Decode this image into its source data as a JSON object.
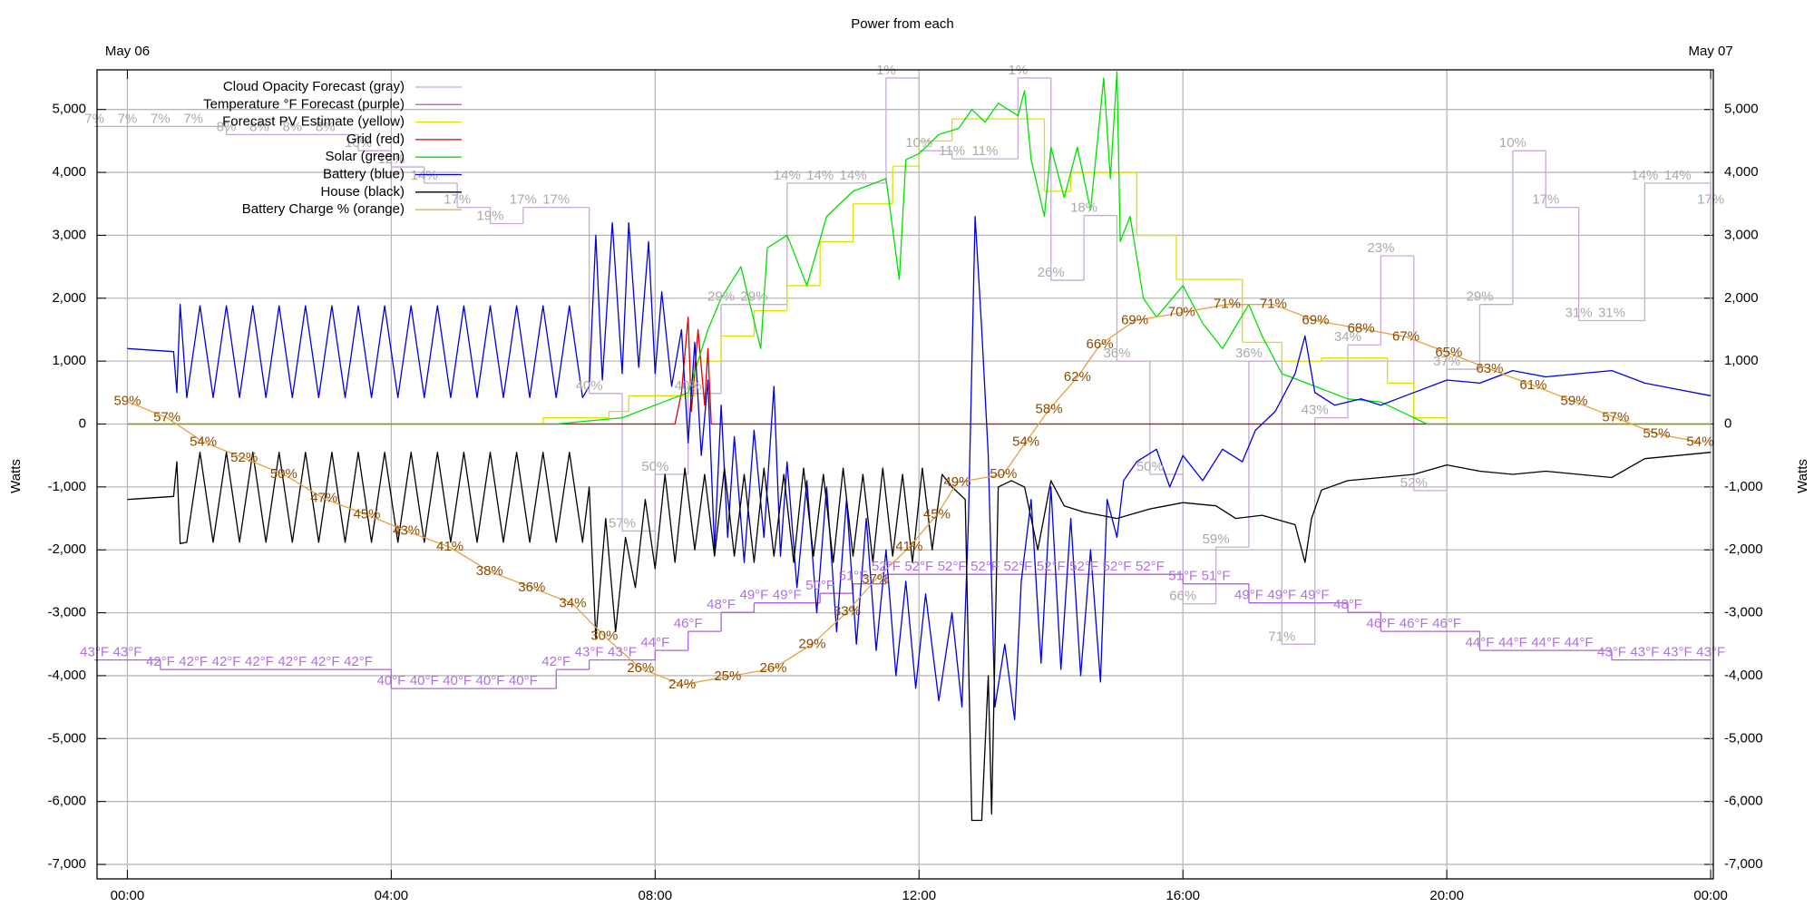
{
  "chart_data": {
    "type": "line",
    "title": "Power from each",
    "ylabel": "Watts",
    "xlim": [
      -0.46,
      24.04
    ],
    "xticks": [
      {
        "value": 0,
        "label": "00:00"
      },
      {
        "value": 4,
        "label": "04:00"
      },
      {
        "value": 8,
        "label": "08:00"
      },
      {
        "value": 12,
        "label": "12:00"
      },
      {
        "value": 16,
        "label": "16:00"
      },
      {
        "value": 20,
        "label": "20:00"
      },
      {
        "value": 24,
        "label": "00:00"
      }
    ],
    "x2ticks": [
      {
        "value": 0,
        "label": "May 06"
      },
      {
        "value": 24,
        "label": "May 07"
      }
    ],
    "ylim": [
      -7230,
      5630
    ],
    "yticks": [
      {
        "value": -7000,
        "label": "-7,000"
      },
      {
        "value": -6000,
        "label": "-6,000"
      },
      {
        "value": -5000,
        "label": "-5,000"
      },
      {
        "value": -4000,
        "label": "-4,000"
      },
      {
        "value": -3000,
        "label": "-3,000"
      },
      {
        "value": -2000,
        "label": "-2,000"
      },
      {
        "value": -1000,
        "label": "-1,000"
      },
      0,
      {
        "value": 1000,
        "label": "1,000"
      },
      {
        "value": 2000,
        "label": "2,000"
      },
      {
        "value": 3000,
        "label": "3,000"
      },
      {
        "value": 4000,
        "label": "4,000"
      },
      {
        "value": 5000,
        "label": "5,000"
      }
    ],
    "y2lim": [
      0,
      100
    ],
    "y3lim": [
      20,
      105
    ],
    "y4lim": [
      100,
      0
    ],
    "grid": true,
    "legend": "top-left",
    "series": [
      {
        "name": "Cloud Opacity Forecast (gray)",
        "color": "#c8a8d8",
        "label_color": "#aaaaaa",
        "axis": "y4",
        "step": true,
        "x": [
          -0.5,
          0,
          0.5,
          1,
          1.5,
          2,
          2.5,
          3,
          3.5,
          4,
          4.5,
          5,
          5.5,
          6,
          6.5,
          7,
          7.5,
          8,
          8.5,
          9,
          9.5,
          10,
          10.5,
          11,
          11.5,
          12,
          12.5,
          13,
          13.5,
          14,
          14.5,
          15,
          15.5,
          16,
          16.5,
          17,
          17.5,
          18,
          18.5,
          19,
          19.5,
          20,
          20.5,
          21,
          21.5,
          22,
          22.5,
          23,
          23.5,
          24
        ],
        "values": [
          7,
          7,
          7,
          7,
          8,
          8,
          8,
          8,
          10,
          12,
          14,
          17,
          19,
          17,
          17,
          40,
          57,
          50,
          40,
          29,
          29,
          14,
          14,
          14,
          1,
          10,
          11,
          11,
          1,
          26,
          18,
          36,
          50,
          66,
          59,
          36,
          71,
          43,
          34,
          23,
          52,
          37,
          29,
          10,
          17,
          31,
          31,
          14,
          14,
          17
        ],
        "value_labels": [
          "7%",
          "7%",
          "7%",
          "7%",
          "8%",
          "8%",
          "8%",
          "8%",
          "10%",
          "12%",
          "14%",
          "17%",
          "19%",
          "17%",
          "17%",
          "40%",
          "57%",
          "50%",
          "40%",
          "29%",
          "29%",
          "14%",
          "14%",
          "14%",
          "1%",
          "10%",
          "11%",
          "11%",
          "1%",
          "26%",
          "18%",
          "36%",
          "50%",
          "66%",
          "59%",
          "36%",
          "71%",
          "43%",
          "34%",
          "23%",
          "52%",
          "37%",
          "29%",
          "10%",
          "17%",
          "31%",
          "31%",
          "14%",
          "14%",
          "17%"
        ]
      },
      {
        "name": "Temperature °F Forecast (purple)",
        "color": "#b060e0",
        "label_color": "#b070e0",
        "axis": "y3",
        "step": true,
        "x": [
          -0.5,
          0,
          0.5,
          1,
          1.5,
          2,
          2.5,
          3,
          3.5,
          4,
          4.5,
          5,
          5.5,
          6,
          6.5,
          7,
          7.5,
          8,
          8.5,
          9,
          9.5,
          10,
          10.5,
          11,
          11.5,
          12,
          12.5,
          13,
          13.5,
          14,
          14.5,
          15,
          15.5,
          16,
          16.5,
          17,
          17.5,
          18,
          18.5,
          19,
          19.5,
          20,
          20.5,
          21,
          21.5,
          22,
          22.5,
          23,
          23.5,
          24
        ],
        "values": [
          43,
          43,
          42,
          42,
          42,
          42,
          42,
          42,
          42,
          40,
          40,
          40,
          40,
          40,
          42,
          43,
          43,
          44,
          46,
          48,
          49,
          49,
          50,
          51,
          52,
          52,
          52,
          52,
          52,
          52,
          52,
          52,
          52,
          51,
          51,
          49,
          49,
          49,
          48,
          46,
          46,
          46,
          44,
          44,
          44,
          44,
          43,
          43,
          43,
          43
        ],
        "value_labels": [
          "43°F",
          "43°F",
          "42°F",
          "42°F",
          "42°F",
          "42°F",
          "42°F",
          "42°F",
          "42°F",
          "40°F",
          "40°F",
          "40°F",
          "40°F",
          "40°F",
          "42°F",
          "43°F",
          "43°F",
          "44°F",
          "46°F",
          "48°F",
          "49°F",
          "49°F",
          "50°F",
          "51°F",
          "52°F",
          "52°F",
          "52°F",
          "52°F",
          "52°F",
          "52°F",
          "52°F",
          "52°F",
          "52°F",
          "51°F",
          "51°F",
          "49°F",
          "49°F",
          "49°F",
          "48°F",
          "46°F",
          "46°F",
          "46°F",
          "44°F",
          "44°F",
          "44°F",
          "44°F",
          "43°F",
          "43°F",
          "43°F",
          "43°F"
        ]
      },
      {
        "name": "Forecast PV Estimate (yellow)",
        "color": "#e0e000",
        "step": true,
        "x": [
          0,
          6.3,
          7.3,
          7.6,
          8.6,
          9.0,
          9.5,
          10.0,
          10.5,
          11.0,
          11.6,
          12.0,
          12.5,
          13.9,
          14.3,
          15.3,
          15.9,
          16.9,
          17.5,
          18.1,
          19.1,
          19.5,
          20.0,
          24
        ],
        "values": [
          0,
          100,
          200,
          450,
          1000,
          1400,
          1800,
          2200,
          2900,
          3500,
          4100,
          4500,
          4850,
          3700,
          4000,
          3000,
          2300,
          1300,
          1000,
          1050,
          650,
          100,
          0,
          0
        ]
      },
      {
        "name": "Grid (red)",
        "color": "#e00000",
        "x": [
          0,
          8.3,
          8.4,
          8.5,
          8.55,
          8.65,
          8.75,
          8.8,
          8.85,
          24
        ],
        "values": [
          0,
          0,
          500,
          1700,
          200,
          1500,
          300,
          1200,
          0,
          0
        ]
      },
      {
        "name": "Solar (green)",
        "color": "#00e000",
        "x": [
          0,
          6.5,
          7,
          7.5,
          8,
          8.5,
          8.8,
          9,
          9.3,
          9.6,
          9.7,
          10,
          10.3,
          10.6,
          11,
          11.5,
          11.7,
          11.8,
          12,
          12.3,
          12.6,
          12.8,
          13,
          13.2,
          13.5,
          13.6,
          13.7,
          13.9,
          14,
          14.2,
          14.4,
          14.6,
          14.8,
          14.9,
          15,
          15.05,
          15.2,
          15.4,
          15.6,
          16,
          16.3,
          16.6,
          17,
          17.2,
          17.5,
          18,
          18.5,
          19,
          19.5,
          19.7,
          24
        ],
        "values": [
          0,
          0,
          50,
          100,
          300,
          500,
          1500,
          2000,
          2500,
          1200,
          2800,
          3000,
          2200,
          3300,
          3700,
          3900,
          2300,
          4200,
          4300,
          4600,
          4700,
          5000,
          4800,
          5100,
          4900,
          5300,
          4200,
          3300,
          4400,
          3600,
          4400,
          3400,
          5500,
          3900,
          5600,
          2900,
          3300,
          2000,
          1700,
          2200,
          1600,
          1200,
          1900,
          1400,
          800,
          600,
          400,
          350,
          100,
          0,
          0
        ]
      },
      {
        "name": "Battery (blue)",
        "color": "#0000e0",
        "x": [
          0,
          0.7,
          0.75,
          0.8,
          0.9,
          1.1,
          1.3,
          1.5,
          1.7,
          1.9,
          2.1,
          2.3,
          2.5,
          2.7,
          2.9,
          3.1,
          3.3,
          3.5,
          3.7,
          3.9,
          4.1,
          4.3,
          4.5,
          4.7,
          4.9,
          5.1,
          5.3,
          5.5,
          5.7,
          5.9,
          6.1,
          6.3,
          6.5,
          6.7,
          6.9,
          7.0,
          7.1,
          7.2,
          7.35,
          7.5,
          7.6,
          7.75,
          7.9,
          8.0,
          8.1,
          8.25,
          8.4,
          8.5,
          8.6,
          8.7,
          8.8,
          8.9,
          9.0,
          9.1,
          9.2,
          9.35,
          9.5,
          9.65,
          9.8,
          9.9,
          10.0,
          10.15,
          10.3,
          10.45,
          10.6,
          10.75,
          10.9,
          11.05,
          11.2,
          11.35,
          11.5,
          11.65,
          11.8,
          11.95,
          12.1,
          12.3,
          12.5,
          12.65,
          12.75,
          12.85,
          12.95,
          13.05,
          13.15,
          13.3,
          13.45,
          13.55,
          13.7,
          13.85,
          14.0,
          14.15,
          14.3,
          14.45,
          14.6,
          14.75,
          14.85,
          15.0,
          15.1,
          15.3,
          15.6,
          15.8,
          16.0,
          16.3,
          16.6,
          16.9,
          17.1,
          17.4,
          17.7,
          17.85,
          18.0,
          18.3,
          18.7,
          19.0,
          19.5,
          20.0,
          20.5,
          21.0,
          21.5,
          22.0,
          22.5,
          23.0,
          23.5,
          24.0
        ],
        "values": [
          1200,
          1150,
          500,
          1900,
          420,
          1880,
          420,
          1880,
          420,
          1880,
          420,
          1880,
          420,
          1880,
          420,
          1880,
          420,
          1880,
          420,
          1880,
          420,
          1880,
          420,
          1880,
          420,
          1880,
          420,
          1880,
          420,
          1880,
          420,
          1880,
          420,
          1880,
          420,
          600,
          3000,
          700,
          3200,
          800,
          3200,
          900,
          2900,
          800,
          2100,
          600,
          1500,
          -300,
          1300,
          -500,
          700,
          -2000,
          300,
          -1800,
          -200,
          -2200,
          -100,
          -1800,
          600,
          -2100,
          -600,
          -2600,
          -900,
          -3000,
          -1000,
          -3300,
          -1200,
          -3500,
          -1500,
          -3600,
          -2000,
          -4000,
          -2500,
          -4200,
          -2700,
          -4400,
          -3000,
          -4500,
          -1500,
          3300,
          1500,
          -500,
          -4500,
          -3500,
          -4700,
          -2500,
          -1200,
          -3800,
          -1000,
          -3900,
          -1500,
          -4000,
          -2000,
          -4100,
          -1200,
          -1800,
          -900,
          -600,
          -400,
          -1000,
          -500,
          -900,
          -400,
          -600,
          -100,
          200,
          800,
          1400,
          500,
          300,
          400,
          300,
          500,
          700,
          650,
          850,
          750,
          800,
          850,
          650,
          550,
          450
        ]
      },
      {
        "name": "House (black)",
        "color": "#000000",
        "x": [
          0,
          0.7,
          0.75,
          0.8,
          0.9,
          1.1,
          1.3,
          1.5,
          1.7,
          1.9,
          2.1,
          2.3,
          2.5,
          2.7,
          2.9,
          3.1,
          3.3,
          3.5,
          3.7,
          3.9,
          4.1,
          4.3,
          4.5,
          4.7,
          4.9,
          5.1,
          5.3,
          5.5,
          5.7,
          5.9,
          6.1,
          6.3,
          6.5,
          6.7,
          6.9,
          7.0,
          7.1,
          7.25,
          7.4,
          7.55,
          7.7,
          7.85,
          8.0,
          8.15,
          8.3,
          8.45,
          8.6,
          8.75,
          8.9,
          9.05,
          9.2,
          9.35,
          9.5,
          9.65,
          9.8,
          9.95,
          10.1,
          10.25,
          10.4,
          10.55,
          10.7,
          10.85,
          11.0,
          11.15,
          11.3,
          11.45,
          11.6,
          11.75,
          11.9,
          12.05,
          12.2,
          12.35,
          12.5,
          12.7,
          12.8,
          12.95,
          13.05,
          13.1,
          13.2,
          13.4,
          13.6,
          13.8,
          14.0,
          14.2,
          14.5,
          15.0,
          15.5,
          16.0,
          16.5,
          16.8,
          17.2,
          17.7,
          17.85,
          17.95,
          18.1,
          18.5,
          19.0,
          19.5,
          20.0,
          20.5,
          21.0,
          21.5,
          22.0,
          22.5,
          23.0,
          23.5,
          24.0
        ],
        "values": [
          -1200,
          -1150,
          -600,
          -1900,
          -1880,
          -450,
          -1880,
          -450,
          -1880,
          -450,
          -1880,
          -450,
          -1880,
          -450,
          -1880,
          -450,
          -1880,
          -450,
          -1880,
          -450,
          -1880,
          -450,
          -1880,
          -450,
          -1880,
          -450,
          -1880,
          -450,
          -1880,
          -450,
          -1880,
          -450,
          -1880,
          -450,
          -1880,
          -1000,
          -3400,
          -1500,
          -3300,
          -1800,
          -2600,
          -1200,
          -2300,
          -800,
          -2200,
          -700,
          -2000,
          -800,
          -2100,
          -700,
          -2100,
          -800,
          -2200,
          -700,
          -2100,
          -800,
          -2200,
          -700,
          -2100,
          -800,
          -2200,
          -700,
          -2100,
          -800,
          -2200,
          -700,
          -2100,
          -800,
          -2200,
          -700,
          -2000,
          -800,
          -1000,
          -1200,
          -6300,
          -6300,
          -4000,
          -6200,
          -1000,
          -900,
          -1000,
          -2000,
          -900,
          -1300,
          -1400,
          -1500,
          -1350,
          -1250,
          -1300,
          -1500,
          -1450,
          -1600,
          -2200,
          -1500,
          -1050,
          -900,
          -850,
          -800,
          -650,
          -750,
          -800,
          -750,
          -800,
          -850,
          -550,
          -500,
          -450
        ]
      },
      {
        "name": "Battery Charge % (orange)",
        "color": "#e8a040",
        "label_color": "#8b4a00",
        "axis": "y2",
        "x": [
          0,
          0.6,
          1.15,
          1.77,
          2.37,
          2.98,
          3.63,
          4.23,
          4.89,
          5.49,
          6.13,
          6.75,
          7.23,
          7.78,
          8.41,
          9.1,
          9.79,
          10.38,
          10.91,
          11.34,
          11.85,
          12.27,
          12.58,
          13.28,
          13.62,
          13.97,
          14.4,
          14.74,
          15.27,
          15.98,
          16.67,
          17.37,
          18.01,
          18.7,
          19.38,
          20.03,
          20.65,
          21.31,
          21.93,
          22.56,
          23.18,
          23.84
        ],
        "values": [
          59,
          57,
          54,
          52,
          50,
          47,
          45,
          43,
          41,
          38,
          36,
          34,
          30,
          26,
          24,
          25,
          26,
          29,
          33,
          37,
          41,
          45,
          49,
          50,
          54,
          58,
          62,
          66,
          69,
          70,
          71,
          71,
          69,
          68,
          67,
          65,
          63,
          61,
          59,
          57,
          55,
          54
        ],
        "value_labels": [
          "59%",
          "57%",
          "54%",
          "52%",
          "50%",
          "47%",
          "45%",
          "43%",
          "41%",
          "38%",
          "36%",
          "34%",
          "30%",
          "26%",
          "24%",
          "25%",
          "26%",
          "29%",
          "33%",
          "37%",
          "41%",
          "45%",
          "49%",
          "50%",
          "54%",
          "58%",
          "62%",
          "66%",
          "69%",
          "70%",
          "71%",
          "71%",
          "69%",
          "68%",
          "67%",
          "65%",
          "63%",
          "61%",
          "59%",
          "57%",
          "55%",
          "54%"
        ]
      }
    ]
  }
}
